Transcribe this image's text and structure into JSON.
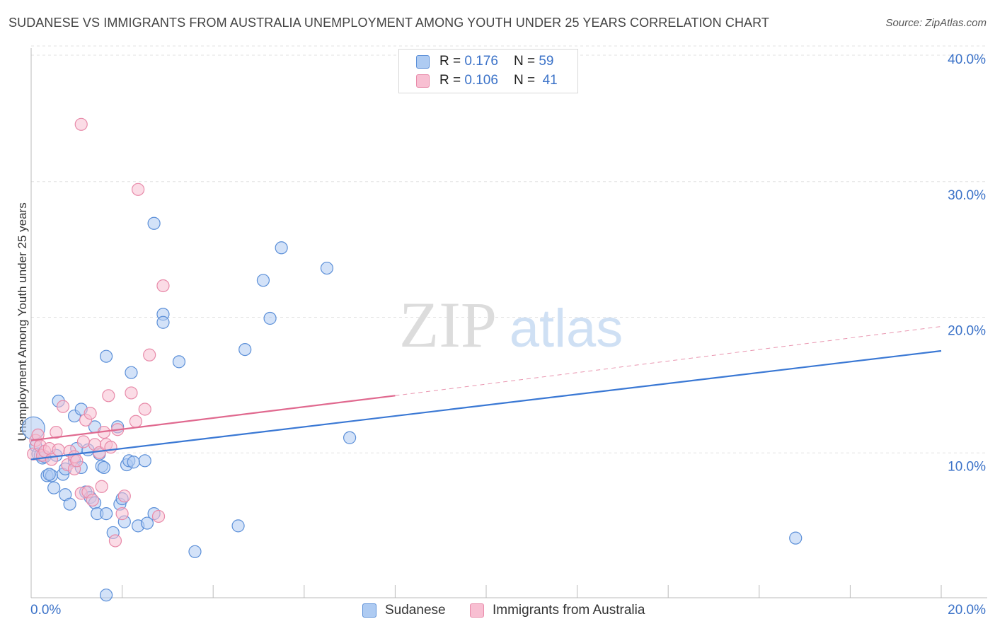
{
  "title": "SUDANESE VS IMMIGRANTS FROM AUSTRALIA UNEMPLOYMENT AMONG YOUTH UNDER 25 YEARS CORRELATION CHART",
  "source": "Source: ZipAtlas.com",
  "watermark": {
    "zip": "ZIP",
    "atlas": "atlas"
  },
  "colors": {
    "blue_fill": "#aecbf2",
    "blue_stroke": "#5b8fd8",
    "blue_line": "#3a78d4",
    "pink_fill": "#f8bfd2",
    "pink_stroke": "#e88aa9",
    "pink_line": "#e0698f",
    "tick_text": "#3b72c8"
  },
  "legend": {
    "rows": [
      {
        "r_label": "R =",
        "r_value": "0.176",
        "n_label": "N =",
        "n_value": "59"
      },
      {
        "r_label": "R =",
        "r_value": "0.106",
        "n_label": "N =",
        "n_value": "41"
      }
    ],
    "bottom": [
      "Sudanese",
      "Immigrants from Australia"
    ]
  },
  "chart_data": {
    "type": "scatter",
    "title": "SUDANESE VS IMMIGRANTS FROM AUSTRALIA UNEMPLOYMENT AMONG YOUTH UNDER 25 YEARS CORRELATION CHART",
    "xlabel": "",
    "ylabel": "Unemployment Among Youth under 25 years",
    "xlim": [
      0,
      20
    ],
    "ylim": [
      0,
      40
    ],
    "x_tick_labels": [
      "0.0%",
      "20.0%"
    ],
    "y_ticks": [
      10,
      20,
      30,
      40
    ],
    "y_tick_labels": [
      "10.0%",
      "20.0%",
      "30.0%",
      "40.0%"
    ],
    "grid": true,
    "series": [
      {
        "name": "Sudanese",
        "R": 0.176,
        "N": 59,
        "trend": {
          "x": [
            0,
            20
          ],
          "y": [
            10.2,
            18.2
          ],
          "style": "solid"
        },
        "points": [
          [
            0.05,
            12.5
          ],
          [
            0.1,
            11.2
          ],
          [
            0.15,
            10.6
          ],
          [
            0.2,
            10.5
          ],
          [
            0.25,
            10.3
          ],
          [
            0.3,
            10.4
          ],
          [
            0.35,
            9.0
          ],
          [
            0.45,
            9.0
          ],
          [
            0.5,
            8.1
          ],
          [
            0.55,
            10.5
          ],
          [
            0.6,
            14.5
          ],
          [
            0.7,
            9.1
          ],
          [
            0.75,
            9.5
          ],
          [
            0.75,
            7.6
          ],
          [
            0.85,
            6.9
          ],
          [
            0.95,
            10.1
          ],
          [
            0.95,
            13.4
          ],
          [
            1.0,
            11.0
          ],
          [
            1.1,
            9.6
          ],
          [
            1.1,
            13.9
          ],
          [
            1.2,
            7.8
          ],
          [
            1.25,
            10.9
          ],
          [
            1.3,
            7.4
          ],
          [
            1.4,
            12.6
          ],
          [
            1.4,
            7.0
          ],
          [
            1.45,
            6.2
          ],
          [
            1.5,
            10.6
          ],
          [
            1.55,
            9.7
          ],
          [
            1.65,
            6.2
          ],
          [
            1.65,
            17.8
          ],
          [
            1.65,
            0.2
          ],
          [
            1.8,
            4.8
          ],
          [
            1.9,
            12.6
          ],
          [
            1.95,
            6.9
          ],
          [
            2.0,
            7.3
          ],
          [
            2.05,
            5.6
          ],
          [
            2.1,
            9.8
          ],
          [
            2.15,
            10.1
          ],
          [
            2.2,
            16.6
          ],
          [
            2.35,
            5.3
          ],
          [
            2.5,
            10.1
          ],
          [
            2.55,
            5.5
          ],
          [
            2.7,
            6.2
          ],
          [
            2.7,
            27.6
          ],
          [
            2.9,
            20.9
          ],
          [
            2.9,
            20.3
          ],
          [
            3.25,
            17.4
          ],
          [
            3.6,
            3.4
          ],
          [
            4.55,
            5.3
          ],
          [
            4.7,
            18.3
          ],
          [
            5.1,
            23.4
          ],
          [
            5.25,
            20.6
          ],
          [
            5.5,
            25.8
          ],
          [
            6.5,
            24.3
          ],
          [
            7.0,
            11.8
          ],
          [
            16.8,
            4.4
          ],
          [
            0.4,
            9.1
          ],
          [
            1.6,
            9.6
          ],
          [
            2.25,
            10.0
          ]
        ]
      },
      {
        "name": "Immigrants from Australia",
        "R": 0.106,
        "N": 41,
        "trend": {
          "x": [
            0,
            8
          ],
          "y": [
            11.6,
            14.9
          ],
          "style": "solid",
          "extended_to": [
            20,
            20.0
          ],
          "extended_style": "dashed"
        },
        "points": [
          [
            0.05,
            10.6
          ],
          [
            0.1,
            11.6
          ],
          [
            0.15,
            12.0
          ],
          [
            0.2,
            11.2
          ],
          [
            0.25,
            10.5
          ],
          [
            0.3,
            10.8
          ],
          [
            0.4,
            11.0
          ],
          [
            0.45,
            10.2
          ],
          [
            0.55,
            12.2
          ],
          [
            0.6,
            10.9
          ],
          [
            0.7,
            14.1
          ],
          [
            0.8,
            9.8
          ],
          [
            0.85,
            10.8
          ],
          [
            0.95,
            9.5
          ],
          [
            0.95,
            10.4
          ],
          [
            1.0,
            10.1
          ],
          [
            1.1,
            7.7
          ],
          [
            1.15,
            11.5
          ],
          [
            1.2,
            13.1
          ],
          [
            1.25,
            7.8
          ],
          [
            1.3,
            13.6
          ],
          [
            1.35,
            7.2
          ],
          [
            1.4,
            11.3
          ],
          [
            1.5,
            10.7
          ],
          [
            1.55,
            8.2
          ],
          [
            1.6,
            12.2
          ],
          [
            1.65,
            11.3
          ],
          [
            1.7,
            14.9
          ],
          [
            1.75,
            11.1
          ],
          [
            1.85,
            4.2
          ],
          [
            1.9,
            12.4
          ],
          [
            2.0,
            6.2
          ],
          [
            2.05,
            7.5
          ],
          [
            2.2,
            15.1
          ],
          [
            2.3,
            13.0
          ],
          [
            2.35,
            30.1
          ],
          [
            2.5,
            13.9
          ],
          [
            2.6,
            17.9
          ],
          [
            2.8,
            6.0
          ],
          [
            2.9,
            23.0
          ],
          [
            1.1,
            34.9
          ]
        ]
      }
    ]
  }
}
